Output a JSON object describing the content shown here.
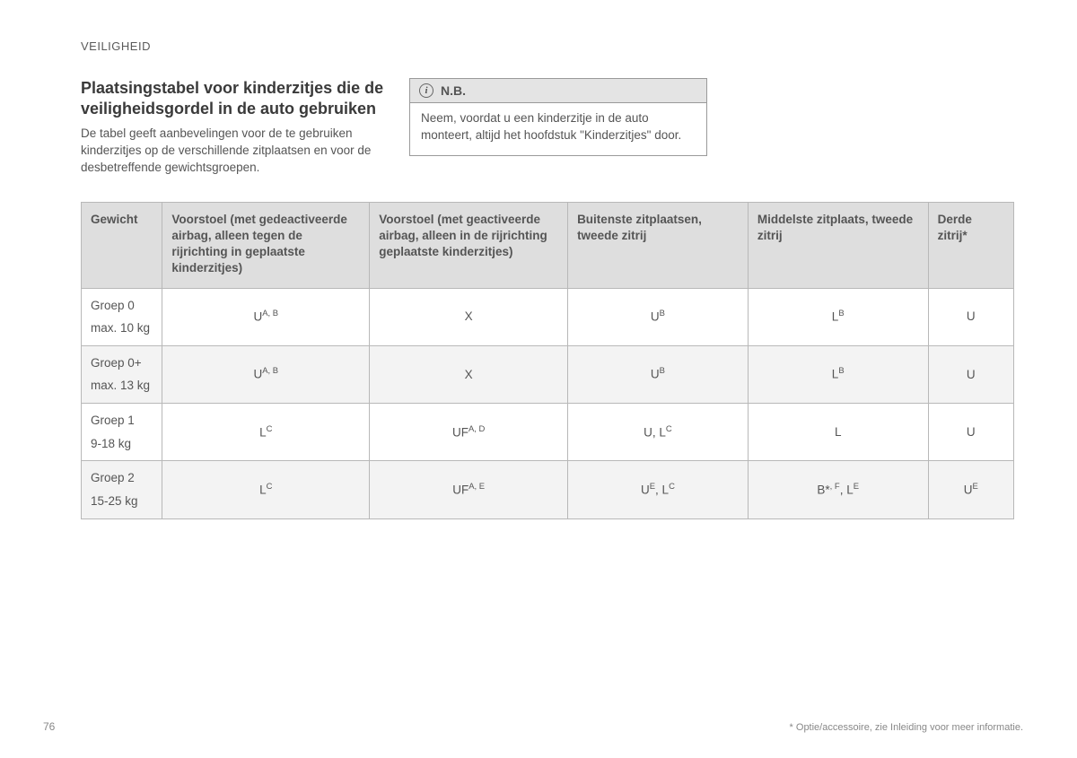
{
  "section_header": "VEILIGHEID",
  "intro": {
    "title": "Plaatsingstabel voor kinderzitjes die de veiligheidsgordel in de auto gebruiken",
    "body": "De tabel geeft aanbevelingen voor de te gebruiken kinderzitjes op de verschillende zitplaatsen en voor de desbetreffende gewichtsgroepen."
  },
  "note": {
    "icon_glyph": "i",
    "title": "N.B.",
    "body": "Neem, voordat u een kinderzitje in de auto monteert, altijd het hoofdstuk \"Kinderzitjes\" door."
  },
  "table": {
    "columns": [
      "Gewicht",
      "Voorstoel (met gedeactiveerde airbag, alleen tegen de rijrichting in geplaatste kinderzitjes)",
      "Voorstoel (met geactiveerde airbag, alleen in de rijrichting geplaatste kinderzitjes)",
      "Buitenste zitplaatsen, tweede zitrij",
      "Middelste zitplaats, tweede zitrij",
      "Derde zitrij*"
    ],
    "col_widths": [
      "90px",
      "230px",
      "220px",
      "200px",
      "200px",
      "95px"
    ],
    "rows": [
      {
        "weight_line1": "Groep 0",
        "weight_line2": "max. 10 kg",
        "cells": [
          {
            "base": "U",
            "sup": "A, B"
          },
          {
            "base": "X",
            "sup": ""
          },
          {
            "base": "U",
            "sup": "B"
          },
          {
            "base": "L",
            "sup": "B"
          },
          {
            "base": "U",
            "sup": ""
          }
        ],
        "alt": false
      },
      {
        "weight_line1": "Groep 0+",
        "weight_line2": "max. 13 kg",
        "cells": [
          {
            "base": "U",
            "sup": "A, B"
          },
          {
            "base": "X",
            "sup": ""
          },
          {
            "base": "U",
            "sup": "B"
          },
          {
            "base": "L",
            "sup": "B"
          },
          {
            "base": "U",
            "sup": ""
          }
        ],
        "alt": true
      },
      {
        "weight_line1": "Groep 1",
        "weight_line2": "9-18 kg",
        "cells": [
          {
            "base": "L",
            "sup": "C"
          },
          {
            "base": "UF",
            "sup": "A, D"
          },
          {
            "base": "U, L",
            "sup": "C"
          },
          {
            "base": "L",
            "sup": ""
          },
          {
            "base": "U",
            "sup": ""
          }
        ],
        "alt": false
      },
      {
        "weight_line1": "Groep 2",
        "weight_line2": "15-25 kg",
        "cells": [
          {
            "base": "L",
            "sup": "C"
          },
          {
            "base": "UF",
            "sup": "A, E"
          },
          {
            "base_html": "U<sup>E</sup>, L<sup>C</sup>"
          },
          {
            "base_html": "B*<sup>, F</sup>, L<sup>E</sup>"
          },
          {
            "base": "U",
            "sup": "E"
          }
        ],
        "alt": true
      }
    ]
  },
  "page_number": "76",
  "footnote": "* Optie/accessoire, zie Inleiding voor meer informatie."
}
